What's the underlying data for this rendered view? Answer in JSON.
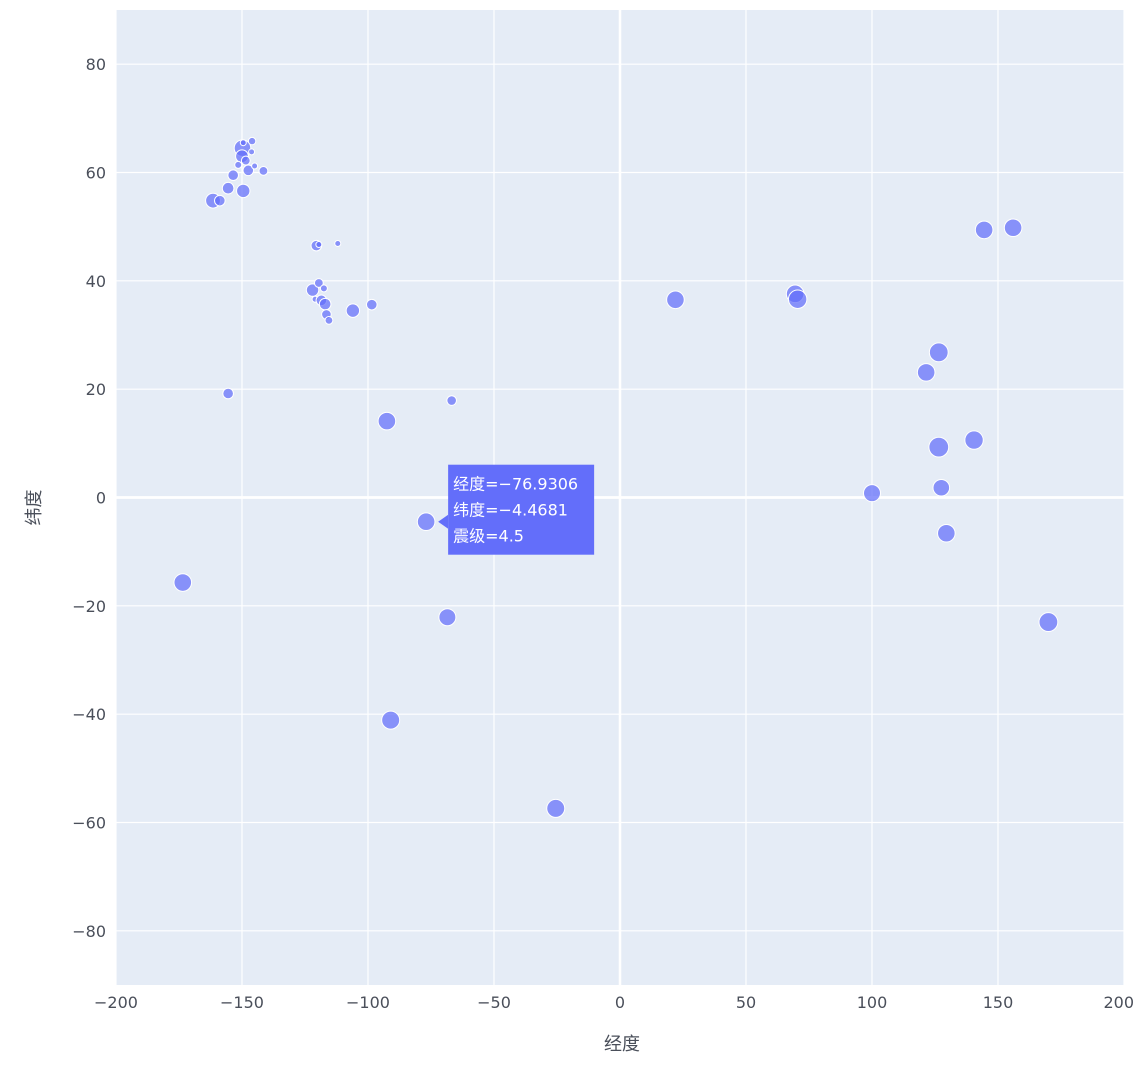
{
  "chart_data": {
    "type": "scatter",
    "title": "",
    "xlabel": "经度",
    "ylabel": "纬度",
    "xlim": [
      -200,
      200
    ],
    "ylim": [
      -90,
      90
    ],
    "xticks": [
      -200,
      -150,
      -100,
      -50,
      0,
      50,
      100,
      150,
      200
    ],
    "yticks": [
      -80,
      -60,
      -40,
      -20,
      0,
      20,
      40,
      60,
      80
    ],
    "grid": true,
    "colors": {
      "background": "#e5ecf6",
      "grid": "#ffffff",
      "marker": "#636efa",
      "marker_edge": "#ffffff",
      "tooltip_bg": "#636efa",
      "tooltip_text": "#ffffff"
    },
    "hover_fields": [
      "经度",
      "纬度",
      "震级"
    ],
    "points": [
      {
        "x": -149.8,
        "y": 64.5,
        "mag": 4.3
      },
      {
        "x": -146.0,
        "y": 65.8,
        "mag": 2.3
      },
      {
        "x": -149.5,
        "y": 65.5,
        "mag": 2.0
      },
      {
        "x": -150.0,
        "y": 63.0,
        "mag": 3.5
      },
      {
        "x": -148.5,
        "y": 62.2,
        "mag": 2.6
      },
      {
        "x": -146.2,
        "y": 63.8,
        "mag": 2.0
      },
      {
        "x": -147.5,
        "y": 60.4,
        "mag": 3.0
      },
      {
        "x": -151.5,
        "y": 61.4,
        "mag": 2.2
      },
      {
        "x": -153.5,
        "y": 59.5,
        "mag": 3.0
      },
      {
        "x": -141.5,
        "y": 60.3,
        "mag": 2.6
      },
      {
        "x": -145.0,
        "y": 61.2,
        "mag": 2.0
      },
      {
        "x": -155.5,
        "y": 57.1,
        "mag": 3.2
      },
      {
        "x": -149.5,
        "y": 56.6,
        "mag": 3.6
      },
      {
        "x": -161.5,
        "y": 54.8,
        "mag": 3.9
      },
      {
        "x": -158.8,
        "y": 54.8,
        "mag": 3.0
      },
      {
        "x": -120.5,
        "y": 46.5,
        "mag": 3.0
      },
      {
        "x": -119.5,
        "y": 46.7,
        "mag": 2.0
      },
      {
        "x": -112.0,
        "y": 46.9,
        "mag": 2.0
      },
      {
        "x": -122.0,
        "y": 38.3,
        "mag": 3.4
      },
      {
        "x": -119.5,
        "y": 39.6,
        "mag": 2.6
      },
      {
        "x": -117.5,
        "y": 38.6,
        "mag": 2.2
      },
      {
        "x": -121.0,
        "y": 36.6,
        "mag": 2.0
      },
      {
        "x": -118.5,
        "y": 36.4,
        "mag": 3.0
      },
      {
        "x": -117.0,
        "y": 35.7,
        "mag": 3.2
      },
      {
        "x": -116.5,
        "y": 33.8,
        "mag": 2.8
      },
      {
        "x": -115.5,
        "y": 32.7,
        "mag": 2.4
      },
      {
        "x": -106.0,
        "y": 34.5,
        "mag": 3.6
      },
      {
        "x": -98.5,
        "y": 35.6,
        "mag": 3.0
      },
      {
        "x": -155.5,
        "y": 19.2,
        "mag": 3.0
      },
      {
        "x": -66.8,
        "y": 17.9,
        "mag": 2.8
      },
      {
        "x": -92.5,
        "y": 14.1,
        "mag": 4.5
      },
      {
        "x": -76.9306,
        "y": -4.4681,
        "mag": 4.5
      },
      {
        "x": -173.5,
        "y": -15.7,
        "mag": 4.5
      },
      {
        "x": -68.5,
        "y": -22.1,
        "mag": 4.4
      },
      {
        "x": -91.0,
        "y": -41.1,
        "mag": 4.6
      },
      {
        "x": -25.5,
        "y": -57.4,
        "mag": 4.6
      },
      {
        "x": 22.0,
        "y": 36.5,
        "mag": 4.5
      },
      {
        "x": 69.5,
        "y": 37.6,
        "mag": 4.5
      },
      {
        "x": 70.5,
        "y": 36.6,
        "mag": 4.7
      },
      {
        "x": 144.5,
        "y": 49.4,
        "mag": 4.5
      },
      {
        "x": 156.0,
        "y": 49.8,
        "mag": 4.5
      },
      {
        "x": 126.5,
        "y": 26.8,
        "mag": 4.8
      },
      {
        "x": 121.5,
        "y": 23.1,
        "mag": 4.5
      },
      {
        "x": 126.5,
        "y": 9.3,
        "mag": 5.0
      },
      {
        "x": 140.5,
        "y": 10.6,
        "mag": 4.7
      },
      {
        "x": 100.0,
        "y": 0.8,
        "mag": 4.4
      },
      {
        "x": 127.5,
        "y": 1.8,
        "mag": 4.3
      },
      {
        "x": 129.5,
        "y": -6.6,
        "mag": 4.5
      },
      {
        "x": 170.0,
        "y": -23.0,
        "mag": 4.8
      }
    ],
    "tooltip": {
      "point_index": 31,
      "lines": [
        "经度=−76.9306",
        "纬度=−4.4681",
        "震级=4.5"
      ]
    }
  }
}
